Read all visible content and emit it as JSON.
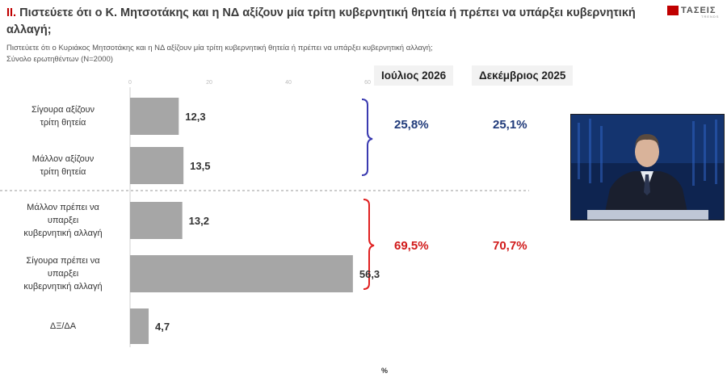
{
  "header": {
    "number": "II.",
    "title": "Πιστεύετε ότι ο Κ. Μητσοτάκης και η ΝΔ αξίζουν μία τρίτη κυβερνητική θητεία ή πρέπει να υπάρξει κυβερνητική αλλαγή;",
    "subtitle_line1": "Πιστεύετε ότι ο Κυριάκος Μητσοτάκης και η ΝΔ αξίζουν μία τρίτη κυβερνητική θητεία ή πρέπει να υπάρξει κυβερνητική αλλαγή;",
    "subtitle_line2": "Σύνολο ερωτηθέντων (N=2000)"
  },
  "logo": {
    "text": "ΤΑΣΕΙΣ",
    "sub": "TRENDS"
  },
  "columns": {
    "july": "Ιούλιος 2026",
    "december": "Δεκέμβριος 2025"
  },
  "groups": {
    "positive": {
      "july": "25,8%",
      "december": "25,1%"
    },
    "negative": {
      "july": "69,5%",
      "december": "70,7%"
    }
  },
  "unit_label": "%",
  "colors": {
    "bar": "#a6a6a6",
    "blue": "#1f3a7a",
    "red": "#d11a1a",
    "bracket_blue": "#3a3ab0",
    "bracket_red": "#e02020"
  },
  "photo": {
    "icon": "speaker-photo"
  },
  "chart_data": {
    "type": "bar",
    "orientation": "horizontal",
    "categories": [
      [
        "Σίγουρα αξίζουν",
        "τρίτη θητεία"
      ],
      [
        "Μάλλον αξίζουν",
        "τρίτη θητεία"
      ],
      [
        "Μάλλον πρέπει να",
        "υπαρξει",
        "κυβερνητική αλλαγή"
      ],
      [
        "Σίγουρα πρέπει να",
        "υπαρξει",
        "κυβερνητική αλλαγή"
      ],
      [
        "ΔΞ/ΔΑ"
      ]
    ],
    "values": [
      12.3,
      13.5,
      13.2,
      56.3,
      4.7
    ],
    "value_labels": [
      "12,3",
      "13,5",
      "13,2",
      "56,3",
      "4,7"
    ],
    "xlim": [
      0,
      60
    ],
    "xticks": [
      "0",
      "20",
      "40",
      "60"
    ],
    "xlabel": "%"
  }
}
